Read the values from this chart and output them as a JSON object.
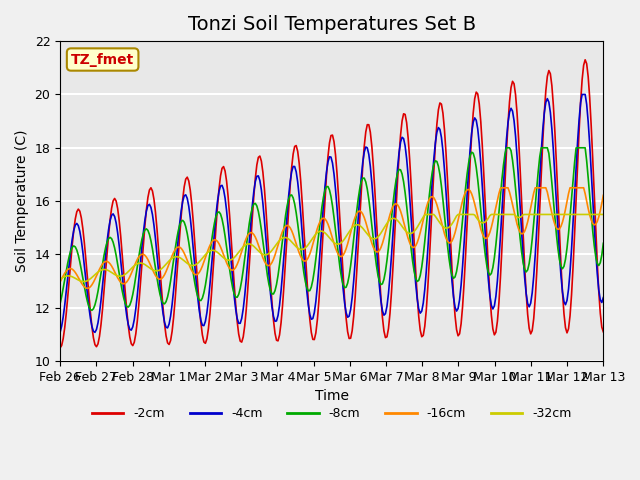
{
  "title": "Tonzi Soil Temperatures Set B",
  "xlabel": "Time",
  "ylabel": "Soil Temperature (C)",
  "ylim": [
    10,
    22
  ],
  "yticks": [
    10,
    12,
    14,
    16,
    18,
    20,
    22
  ],
  "xtick_labels": [
    "Feb 26",
    "Feb 27",
    "Feb 28",
    "Mar 1",
    "Mar 2",
    "Mar 3",
    "Mar 4",
    "Mar 5",
    "Mar 6",
    "Mar 7",
    "Mar 8",
    "Mar 9",
    "Mar 10",
    "Mar 11",
    "Mar 12",
    "Mar 13"
  ],
  "legend_labels": [
    "-2cm",
    "-4cm",
    "-8cm",
    "-16cm",
    "-32cm"
  ],
  "legend_colors": [
    "#dd0000",
    "#0000cc",
    "#00aa00",
    "#ff8800",
    "#cccc00"
  ],
  "annotation_text": "TZ_fmet",
  "annotation_bg": "#ffffcc",
  "annotation_border": "#aa8800",
  "background_color": "#e8e8e8",
  "grid_color": "#ffffff",
  "title_fontsize": 14,
  "axis_fontsize": 10,
  "tick_fontsize": 9
}
